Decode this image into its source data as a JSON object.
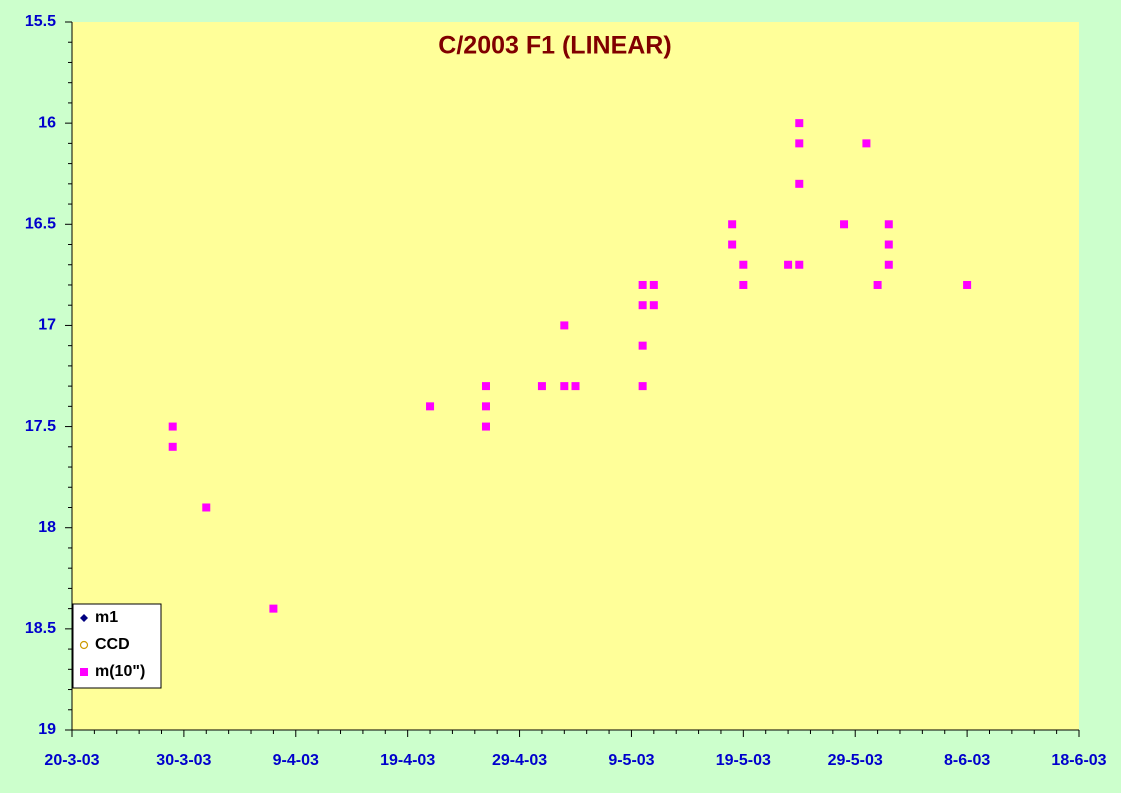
{
  "chart_data": {
    "type": "scatter",
    "title": "C/2003 F1 (LINEAR)",
    "xlim": [
      "2003-03-20",
      "2003-06-18"
    ],
    "xticks": [
      {
        "value": "2003-03-20",
        "label": "20-3-03"
      },
      {
        "value": "2003-03-30",
        "label": "30-3-03"
      },
      {
        "value": "2003-04-09",
        "label": "9-4-03"
      },
      {
        "value": "2003-04-19",
        "label": "19-4-03"
      },
      {
        "value": "2003-04-29",
        "label": "29-4-03"
      },
      {
        "value": "2003-05-09",
        "label": "9-5-03"
      },
      {
        "value": "2003-05-19",
        "label": "19-5-03"
      },
      {
        "value": "2003-05-29",
        "label": "29-5-03"
      },
      {
        "value": "2003-06-08",
        "label": "8-6-03"
      },
      {
        "value": "2003-06-18",
        "label": "18-6-03"
      }
    ],
    "ylim": [
      15.5,
      19
    ],
    "y_inverted": true,
    "yticks": [
      15.5,
      16,
      16.5,
      17,
      17.5,
      18,
      18.5,
      19
    ],
    "legend": "bottom-left",
    "series": [
      {
        "name": "m1",
        "color": "#000080",
        "marker": "diamond",
        "x": [],
        "values": []
      },
      {
        "name": "CCD",
        "color": "#cc9900",
        "marker": "circle",
        "x": [],
        "values": []
      },
      {
        "name": "m(10\")",
        "color": "#ff00ff",
        "marker": "square",
        "x": [
          "2003-03-29",
          "2003-03-29",
          "2003-04-01",
          "2003-04-07",
          "2003-04-21",
          "2003-04-26",
          "2003-04-26",
          "2003-04-26",
          "2003-05-01",
          "2003-05-03",
          "2003-05-03",
          "2003-05-04",
          "2003-05-10",
          "2003-05-10",
          "2003-05-10",
          "2003-05-10",
          "2003-05-11",
          "2003-05-11",
          "2003-05-18",
          "2003-05-18",
          "2003-05-19",
          "2003-05-19",
          "2003-05-23",
          "2003-05-24",
          "2003-05-24",
          "2003-05-24",
          "2003-05-24",
          "2003-05-28",
          "2003-05-30",
          "2003-05-31",
          "2003-06-01",
          "2003-06-01",
          "2003-06-01",
          "2003-06-08"
        ],
        "values": [
          17.5,
          17.6,
          17.9,
          18.4,
          17.4,
          17.4,
          17.5,
          17.3,
          17.3,
          17.0,
          17.3,
          17.3,
          16.8,
          16.9,
          17.1,
          17.3,
          16.8,
          16.9,
          16.5,
          16.6,
          16.7,
          16.8,
          16.7,
          16.0,
          16.1,
          16.3,
          16.7,
          16.5,
          16.1,
          16.8,
          16.5,
          16.6,
          16.7,
          16.8
        ]
      }
    ]
  }
}
